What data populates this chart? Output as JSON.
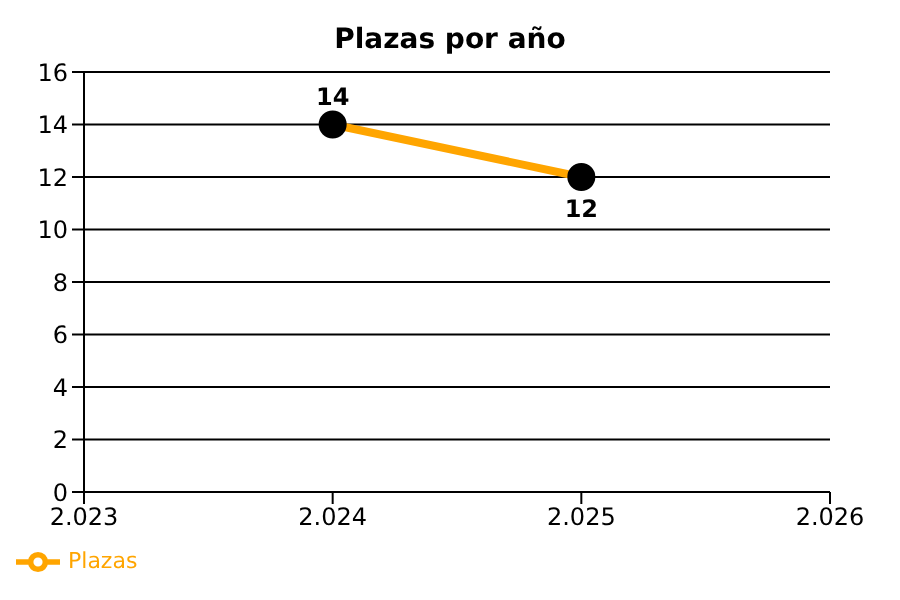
{
  "chart_data": {
    "type": "line",
    "title": "Plazas por año",
    "x": [
      2024,
      2025
    ],
    "series": [
      {
        "name": "Plazas",
        "color": "#ffa500",
        "values": [
          14,
          12
        ]
      }
    ],
    "xlim": [
      2023,
      2026
    ],
    "xticks": [
      {
        "value": 2023,
        "label": "2.023"
      },
      {
        "value": 2024,
        "label": "2.024"
      },
      {
        "value": 2025,
        "label": "2.025"
      },
      {
        "value": 2026,
        "label": "2.026"
      }
    ],
    "ylim": [
      0,
      16
    ],
    "yticks": [
      0,
      2,
      4,
      6,
      8,
      10,
      12,
      14,
      16
    ],
    "grid": "y",
    "legend": "bottom left",
    "marker": "circle",
    "line_style": "solid",
    "data_labels": true
  }
}
